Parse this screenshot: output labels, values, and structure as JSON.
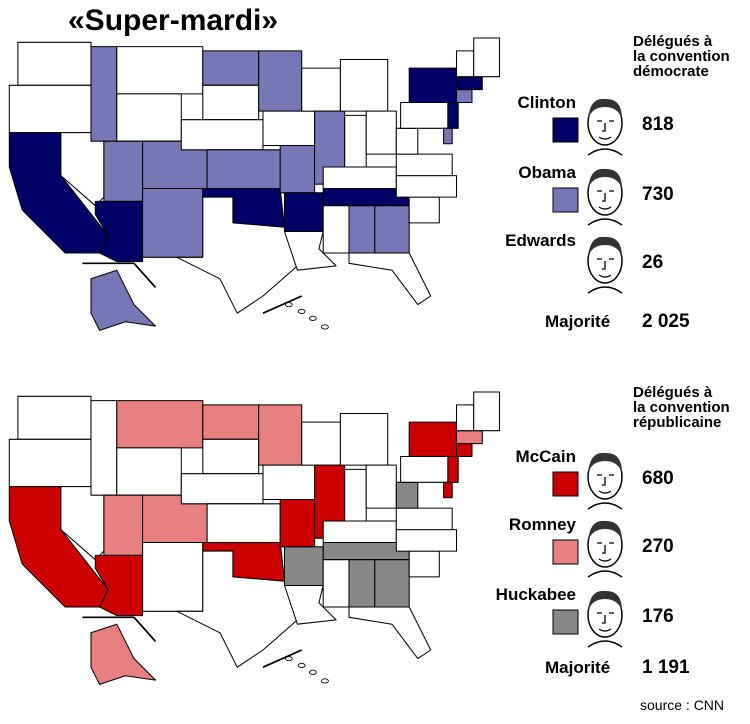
{
  "title": "«Super-mardi»",
  "democrat": {
    "heading": [
      "Délégués à",
      "la convention",
      "démocrate"
    ],
    "candidates": [
      {
        "name": "Clinton",
        "color": "#000066",
        "delegates": "818"
      },
      {
        "name": "Obama",
        "color": "#7777b5",
        "delegates": "730"
      },
      {
        "name": "Edwards",
        "delegates": "26"
      }
    ],
    "majority_label": "Majorité",
    "majority": "2 025"
  },
  "republican": {
    "heading": [
      "Délégués à",
      "la convention",
      "républicaine"
    ],
    "candidates": [
      {
        "name": "McCain",
        "color": "#cc0000",
        "delegates": "680"
      },
      {
        "name": "Romney",
        "color": "#e88080",
        "delegates": "270"
      },
      {
        "name": "Huckabee",
        "color": "#888888",
        "delegates": "176"
      }
    ],
    "majority_label": "Majorité",
    "majority": "1 191"
  },
  "source": "source : CNN"
}
